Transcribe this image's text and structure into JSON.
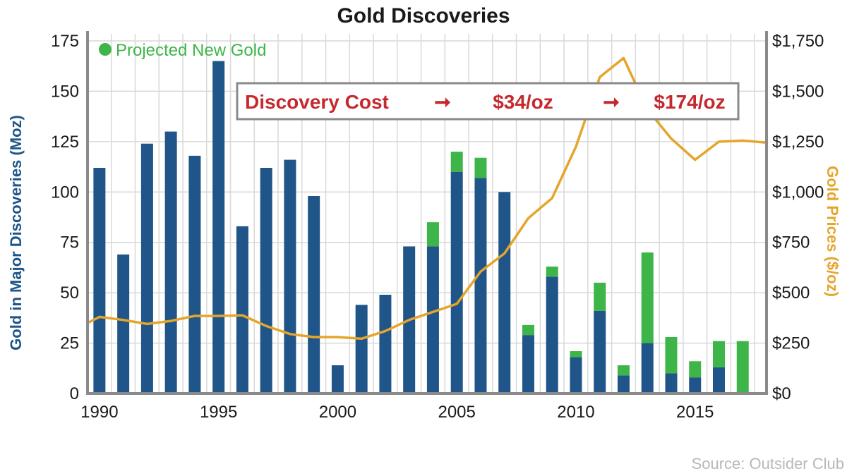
{
  "chart_data": {
    "type": "bar",
    "title": "Gold Discoveries",
    "ylabel": "Gold in Major Discoveries (Moz)",
    "y2label": "Gold Prices ($/oz)",
    "ylim": [
      0,
      175
    ],
    "y2lim": [
      0,
      1750
    ],
    "yticks": [
      "0",
      "25",
      "50",
      "75",
      "100",
      "125",
      "150",
      "175"
    ],
    "y2ticks": [
      "$0",
      "$250",
      "$500",
      "$750",
      "$1,000",
      "$1,250",
      "$1,500",
      "$1,750"
    ],
    "xticks": [
      "1990",
      "1995",
      "2000",
      "2005",
      "2010",
      "2015"
    ],
    "grid": true,
    "legend_position": "top-left",
    "x": [
      1990,
      1991,
      1992,
      1993,
      1994,
      1995,
      1996,
      1997,
      1998,
      1999,
      2000,
      2001,
      2002,
      2003,
      2004,
      2005,
      2006,
      2007,
      2008,
      2009,
      2010,
      2011,
      2012,
      2013,
      2014,
      2015,
      2016,
      2017
    ],
    "series": [
      {
        "kind": "bar-stack",
        "values": [
          112,
          69,
          124,
          130,
          118,
          165,
          83,
          112,
          116,
          98,
          14,
          44,
          49,
          73,
          73,
          110,
          107,
          100,
          29,
          58,
          18,
          41,
          9,
          25,
          10,
          8,
          13,
          0
        ]
      },
      {
        "kind": "bar-stack",
        "name": "Projected New Gold",
        "values": [
          0,
          0,
          0,
          0,
          0,
          0,
          0,
          0,
          0,
          0,
          0,
          0,
          0,
          0,
          12,
          10,
          10,
          0,
          5,
          5,
          3,
          14,
          5,
          45,
          18,
          8,
          13,
          26
        ]
      },
      {
        "kind": "line",
        "axis": "right",
        "x": [
          1989.5,
          1990,
          1991,
          1992,
          1993,
          1994,
          1995,
          1996,
          1997,
          1998,
          1999,
          2000,
          2001,
          2002,
          2003,
          2004,
          2005,
          2006,
          2007,
          2008,
          2009,
          2010,
          2011,
          2012,
          2013,
          2014,
          2015,
          2016,
          2017,
          2018
        ],
        "values": [
          350,
          380,
          365,
          345,
          360,
          385,
          385,
          388,
          335,
          295,
          280,
          280,
          272,
          310,
          365,
          405,
          445,
          605,
          695,
          870,
          970,
          1225,
          1570,
          1665,
          1410,
          1265,
          1160,
          1250,
          1255,
          1245
        ]
      }
    ],
    "colors": {
      "base": "#1f5589",
      "projected": "#3db549",
      "line": "#e5a52b",
      "annotation": "#c5292e"
    }
  },
  "annotation": {
    "label": "Discovery Cost",
    "arrow1": "➞",
    "value1": "$34/oz",
    "arrow2": "➞",
    "value2": "$174/oz"
  },
  "source": "Source: Outsider Club"
}
